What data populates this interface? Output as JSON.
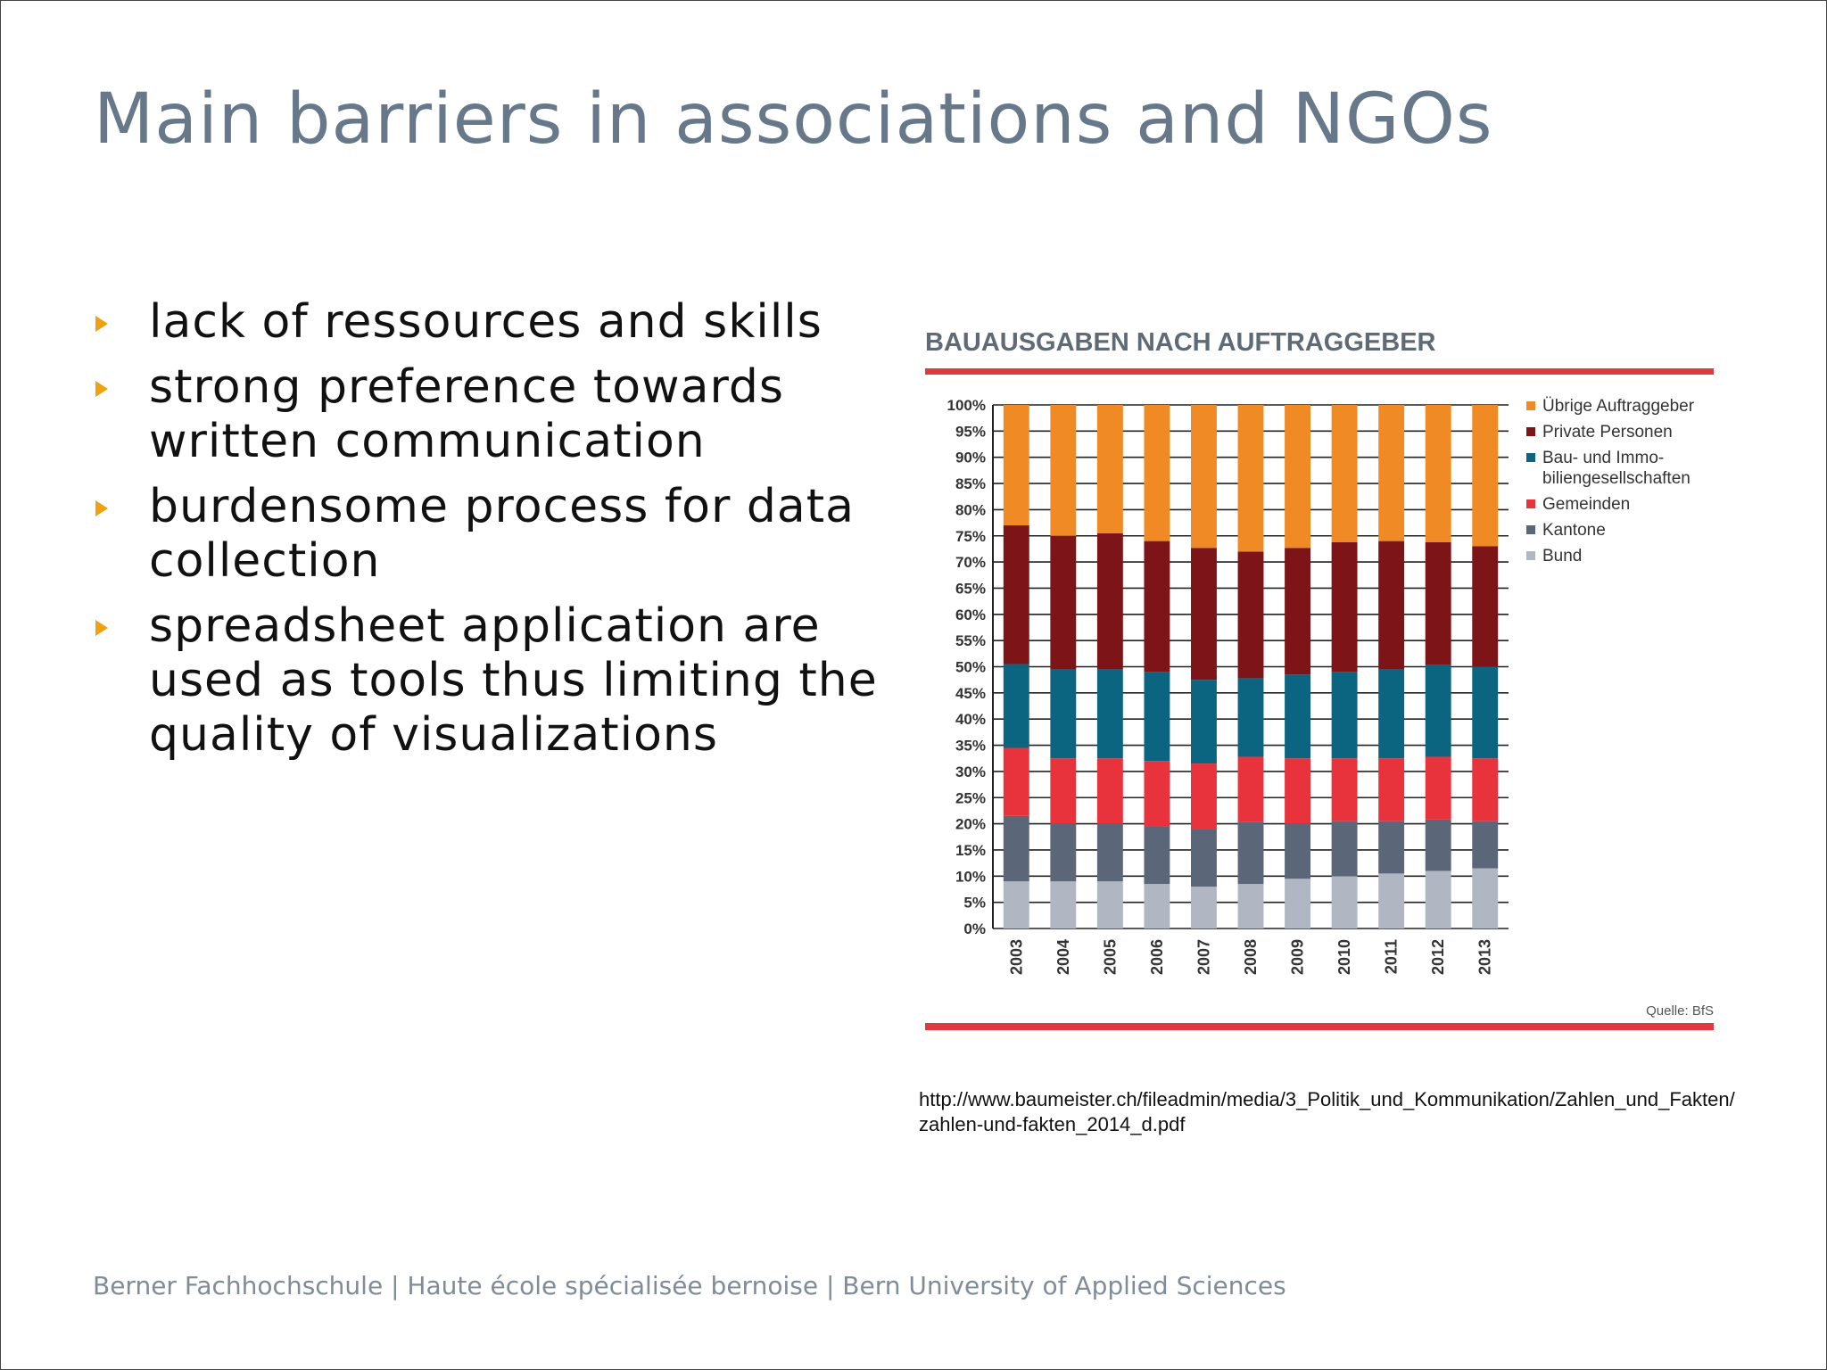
{
  "slide": {
    "title": "Main barriers in associations and NGOs",
    "bullets": [
      "lack of ressources and skills",
      "strong preference towards written communication",
      "burdensome process for data collection",
      "spreadsheet application are used as tools thus limiting the quality of visualizations"
    ],
    "source_url": "http://www.baumeister.ch/fileadmin/media/3_Politik_und_Kommunikation/Zahlen_und_Fakten/zahlen-und-fakten_2014_d.pdf",
    "footer": "Berner Fachhochschule | Haute école spécialisée bernoise | Bern University of Applied Sciences",
    "colors": {
      "title": "#667889",
      "bullet_marker": "#f0a10f",
      "chart_rule": "#e03a3e"
    }
  },
  "chart_data": {
    "type": "bar",
    "stacked": true,
    "percent_axis": true,
    "title": "BAUAUSGABEN NACH AUFTRAGGEBER",
    "source_note": "Quelle: BfS",
    "categories": [
      "2003",
      "2004",
      "2005",
      "2006",
      "2007",
      "2008",
      "2009",
      "2010",
      "2011",
      "2012",
      "2013"
    ],
    "ylim": [
      0,
      100
    ],
    "yticks": [
      "0%",
      "5%",
      "10%",
      "15%",
      "20%",
      "25%",
      "30%",
      "35%",
      "40%",
      "45%",
      "50%",
      "55%",
      "60%",
      "65%",
      "70%",
      "75%",
      "80%",
      "85%",
      "90%",
      "95%",
      "100%"
    ],
    "legend_position": "right",
    "grid": true,
    "series": [
      {
        "name": "Bund",
        "color": "#b0b7c3",
        "values": [
          9,
          9,
          9,
          8.5,
          8,
          8.5,
          9.5,
          10,
          10.5,
          11,
          11.5
        ]
      },
      {
        "name": "Kantone",
        "color": "#5b6778",
        "values": [
          12.5,
          11,
          11,
          11,
          11,
          11.8,
          10.5,
          10.5,
          10,
          9.8,
          9
        ]
      },
      {
        "name": "Gemeinden",
        "color": "#e8333c",
        "values": [
          13,
          12.5,
          12.5,
          12.5,
          12.5,
          12.5,
          12.5,
          12,
          12,
          12,
          12
        ]
      },
      {
        "name": "Bau- und Immo-biliengesellschaften",
        "color": "#0c6580",
        "values": [
          16,
          17,
          17,
          17,
          16,
          15,
          16,
          16.5,
          17,
          17.5,
          17.5
        ]
      },
      {
        "name": "Private Personen",
        "color": "#7d1418",
        "values": [
          26.5,
          25.5,
          26,
          25,
          25.2,
          24.2,
          24.2,
          24.8,
          24.5,
          23.5,
          23
        ]
      },
      {
        "name": "Übrige Auftraggeber",
        "color": "#f08a24",
        "values": [
          23,
          25,
          24.5,
          26,
          27.3,
          28,
          27.3,
          26.2,
          26,
          26.2,
          27
        ]
      }
    ],
    "legend_order": [
      "Übrige Auftraggeber",
      "Private Personen",
      "Bau- und Immo-biliengesellschaften",
      "Gemeinden",
      "Kantone",
      "Bund"
    ],
    "legend_labels": [
      [
        "Übrige Auftraggeber"
      ],
      [
        "Private Personen"
      ],
      [
        "Bau- und Immo-",
        "biliengesellschaften"
      ],
      [
        "Gemeinden"
      ],
      [
        "Kantone"
      ],
      [
        "Bund"
      ]
    ]
  }
}
